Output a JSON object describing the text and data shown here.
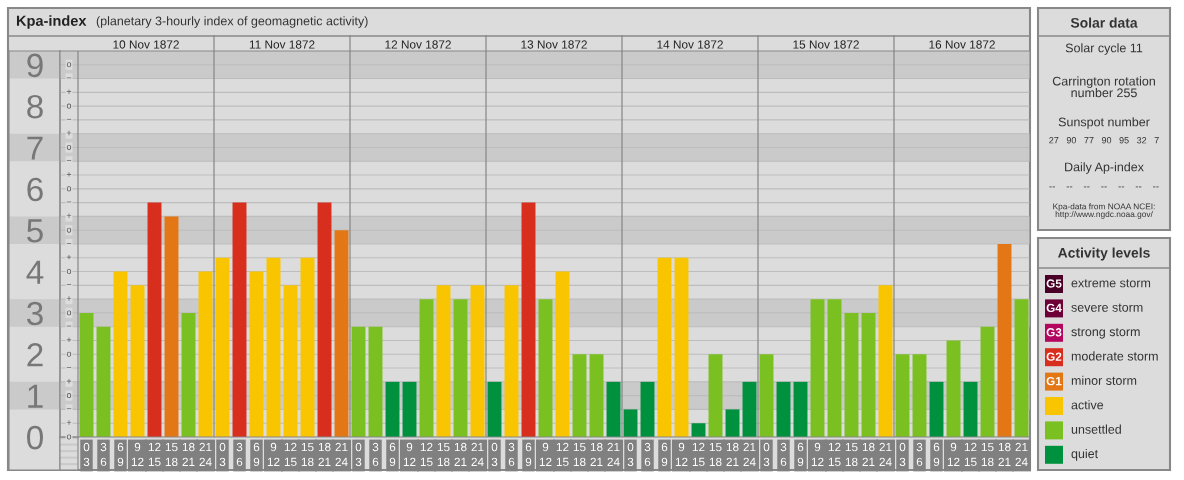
{
  "chart_data": [
    {
      "type": "bar",
      "title": "Kpa-index",
      "subtitle": "(planetary 3-hourly index of geomagnetic activity)",
      "legend_title": "Activity levels",
      "legend": "right",
      "grid": true,
      "categories": [
        "0\n3",
        "3\n6",
        "6\n9",
        "9\n12",
        "12\n15",
        "15\n18",
        "18\n21",
        "21\n24",
        "0\n3",
        "3\n6",
        "6\n9",
        "9\n12",
        "12\n15",
        "15\n18",
        "18\n21",
        "21\n24",
        "0\n3",
        "3\n6",
        "6\n9",
        "9\n12",
        "12\n15",
        "15\n18",
        "18\n21",
        "21\n24",
        "0\n3",
        "3\n6",
        "6\n9",
        "9\n12",
        "12\n15",
        "15\n18",
        "18\n21",
        "21\n24",
        "0\n3",
        "3\n6",
        "6\n9",
        "9\n12",
        "12\n15",
        "15\n18",
        "18\n21",
        "21\n24",
        "0\n3",
        "3\n6",
        "6\n9",
        "9\n12",
        "12\n15",
        "15\n18",
        "18\n21",
        "21\n24",
        "0\n3",
        "3\n6",
        "6\n9",
        "9\n12",
        "12\n15",
        "15\n18",
        "18\n21",
        "21\n24"
      ],
      "ylim": [
        0,
        9.333
      ],
      "yticks": [
        0,
        1,
        2,
        3,
        4,
        5,
        6,
        7,
        8,
        9
      ],
      "annotations": [
        "10 Nov 1872",
        "11 Nov 1872",
        "12 Nov 1872",
        "13 Nov 1872",
        "14 Nov 1872",
        "15 Nov 1872",
        "16 Nov 1872",
        "o",
        "+",
        "−",
        "o",
        "+",
        "−",
        "o",
        "+",
        "−",
        "o",
        "+",
        "−",
        "o",
        "+",
        "−",
        "o",
        "+",
        "−",
        "o",
        "+",
        "−",
        "o",
        "+",
        "−",
        "o",
        "+",
        "−",
        "o"
      ],
      "bands": [
        {
          "axis": "y",
          "from": 0.667,
          "to": 1.333,
          "color": "#cacaca"
        },
        {
          "axis": "y",
          "from": 2.667,
          "to": 3.333,
          "color": "#cacaca"
        },
        {
          "axis": "y",
          "from": 4.667,
          "to": 5.333,
          "color": "#cacaca"
        },
        {
          "axis": "y",
          "from": 6.667,
          "to": 7.333,
          "color": "#cacaca"
        },
        {
          "axis": "y",
          "from": 8.667,
          "to": 9.333,
          "color": "#cacaca"
        }
      ],
      "series": [
        {
          "name": "extreme storm",
          "color": "#4b0028",
          "values": [
            null,
            null,
            null,
            null,
            null,
            null,
            null,
            null,
            null,
            null,
            null,
            null,
            null,
            null,
            null,
            null,
            null,
            null,
            null,
            null,
            null,
            null,
            null,
            null,
            null,
            null,
            null,
            null,
            null,
            null,
            null,
            null,
            null,
            null,
            null,
            null,
            null,
            null,
            null,
            null,
            null,
            null,
            null,
            null,
            null,
            null,
            null,
            null,
            null,
            null,
            null,
            null,
            null,
            null,
            null,
            null
          ]
        },
        {
          "name": "severe storm",
          "color": "#6e0038",
          "values": [
            null,
            null,
            null,
            null,
            null,
            null,
            null,
            null,
            null,
            null,
            null,
            null,
            null,
            null,
            null,
            null,
            null,
            null,
            null,
            null,
            null,
            null,
            null,
            null,
            null,
            null,
            null,
            null,
            null,
            null,
            null,
            null,
            null,
            null,
            null,
            null,
            null,
            null,
            null,
            null,
            null,
            null,
            null,
            null,
            null,
            null,
            null,
            null,
            null,
            null,
            null,
            null,
            null,
            null,
            null,
            null
          ]
        },
        {
          "name": "strong storm",
          "color": "#b3075f",
          "values": [
            null,
            null,
            null,
            null,
            null,
            null,
            null,
            null,
            null,
            null,
            null,
            null,
            null,
            null,
            null,
            null,
            null,
            null,
            null,
            null,
            null,
            null,
            null,
            null,
            null,
            null,
            null,
            null,
            null,
            null,
            null,
            null,
            null,
            null,
            null,
            null,
            null,
            null,
            null,
            null,
            null,
            null,
            null,
            null,
            null,
            null,
            null,
            null,
            null,
            null,
            null,
            null,
            null,
            null,
            null,
            null
          ]
        },
        {
          "name": "moderate storm",
          "color": "#d72e1e",
          "values": [
            null,
            null,
            null,
            null,
            5.667,
            null,
            null,
            null,
            null,
            5.667,
            null,
            null,
            null,
            null,
            5.667,
            null,
            null,
            null,
            null,
            null,
            null,
            null,
            null,
            null,
            null,
            null,
            5.667,
            null,
            null,
            null,
            null,
            null,
            null,
            null,
            null,
            null,
            null,
            null,
            null,
            null,
            null,
            null,
            null,
            null,
            null,
            null,
            null,
            null,
            null,
            null,
            null,
            null,
            null,
            null,
            null,
            null
          ]
        },
        {
          "name": "minor storm",
          "color": "#e37716",
          "values": [
            null,
            null,
            null,
            null,
            null,
            5.333,
            null,
            null,
            null,
            null,
            null,
            null,
            null,
            null,
            null,
            5,
            null,
            null,
            null,
            null,
            null,
            null,
            null,
            null,
            null,
            null,
            null,
            null,
            null,
            null,
            null,
            null,
            null,
            null,
            null,
            null,
            null,
            null,
            null,
            null,
            null,
            null,
            null,
            null,
            null,
            null,
            null,
            null,
            null,
            null,
            null,
            null,
            null,
            null,
            4.667,
            null
          ]
        },
        {
          "name": "active",
          "color": "#f8c500",
          "values": [
            null,
            null,
            4,
            3.667,
            null,
            null,
            null,
            4,
            4.333,
            null,
            4,
            4.333,
            3.667,
            4.333,
            null,
            null,
            null,
            null,
            null,
            null,
            null,
            3.667,
            null,
            3.667,
            null,
            3.667,
            null,
            null,
            4,
            null,
            null,
            null,
            null,
            null,
            4.333,
            4.333,
            null,
            null,
            null,
            null,
            null,
            null,
            null,
            null,
            null,
            null,
            null,
            3.667,
            null,
            null,
            null,
            null,
            null,
            null,
            null,
            null
          ]
        },
        {
          "name": "unsettled",
          "color": "#7bc021",
          "values": [
            3,
            2.667,
            null,
            null,
            null,
            null,
            3,
            null,
            null,
            null,
            null,
            null,
            null,
            null,
            null,
            null,
            2.667,
            2.667,
            null,
            null,
            3.333,
            null,
            3.333,
            null,
            null,
            null,
            null,
            3.333,
            null,
            2,
            2,
            null,
            null,
            null,
            null,
            null,
            null,
            2,
            null,
            null,
            2,
            null,
            null,
            3.333,
            3.333,
            3,
            3,
            null,
            2,
            2,
            null,
            2.333,
            null,
            2.667,
            null,
            3.333
          ]
        },
        {
          "name": "quiet",
          "color": "#00913f",
          "values": [
            null,
            null,
            null,
            null,
            null,
            null,
            null,
            null,
            null,
            null,
            null,
            null,
            null,
            null,
            null,
            null,
            null,
            null,
            1.333,
            1.333,
            null,
            null,
            null,
            null,
            1.333,
            null,
            null,
            null,
            null,
            null,
            null,
            1.333,
            0.667,
            1.333,
            null,
            null,
            0.333,
            null,
            0.667,
            1.333,
            null,
            1.333,
            1.333,
            null,
            null,
            null,
            null,
            null,
            null,
            null,
            1.333,
            null,
            1.333,
            null,
            null,
            null
          ]
        }
      ]
    },
    {
      "type": "other",
      "title": "Solar data",
      "annotations": [
        "Solar cycle 11",
        "Carrington rotation\nnumber 255",
        "Sunspot number",
        "27   90   77   90   95   32   7",
        "Daily Ap-index",
        "--    --    --    --    --    --    --",
        "Kpa-data from NOAA NCEI:\nhttp://www.ngdc.noaa.gov/"
      ]
    },
    {
      "type": "other",
      "annotations": [
        "G5",
        "G4",
        "G3",
        "G2",
        "G1"
      ]
    }
  ]
}
